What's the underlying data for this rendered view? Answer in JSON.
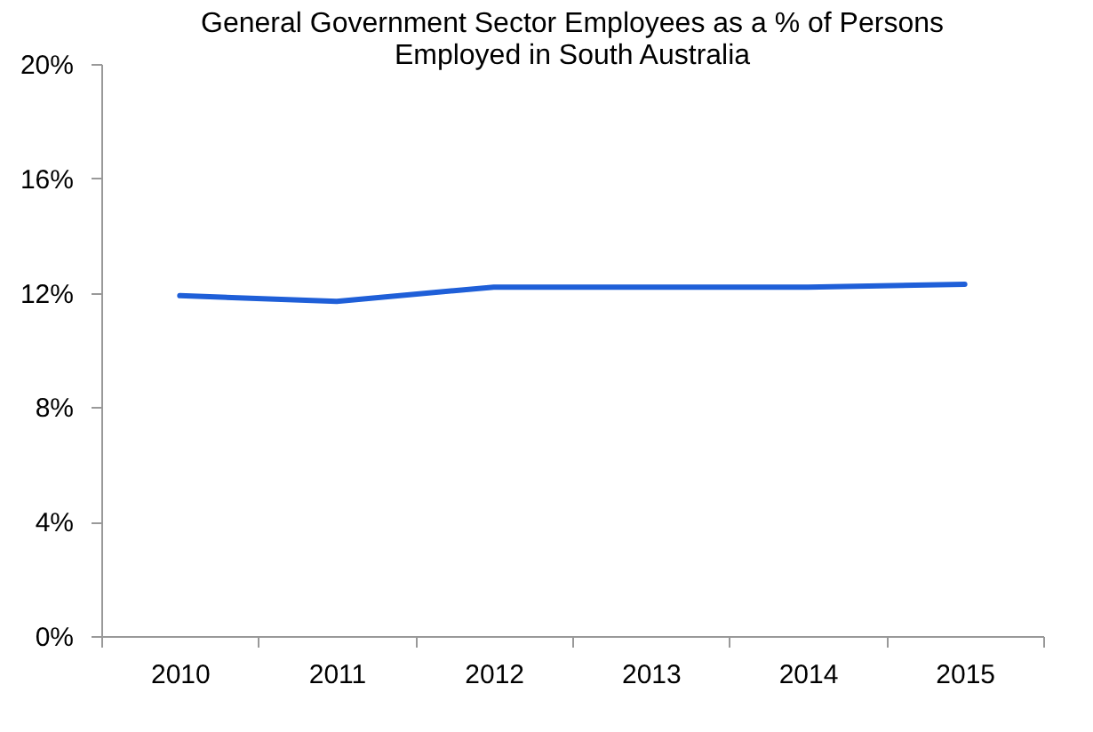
{
  "chart_data": {
    "type": "line",
    "title": [
      "General Government Sector Employees as a % of Persons",
      "Employed in South Australia"
    ],
    "categories": [
      "2010",
      "2011",
      "2012",
      "2013",
      "2014",
      "2015"
    ],
    "series": [
      {
        "color": "#1f5fd8",
        "values": [
          11.9,
          11.7,
          12.2,
          12.2,
          12.2,
          12.3
        ]
      }
    ],
    "ylim": [
      0,
      20
    ],
    "yticks": [
      {
        "value": 0,
        "label": "0%"
      },
      {
        "value": 4,
        "label": "4%"
      },
      {
        "value": 8,
        "label": "8%"
      },
      {
        "value": 12,
        "label": "12%"
      },
      {
        "value": 16,
        "label": "16%"
      },
      {
        "value": 20,
        "label": "20%"
      }
    ],
    "grid": false,
    "legend": false,
    "marker": "none",
    "line_style": "solid"
  }
}
